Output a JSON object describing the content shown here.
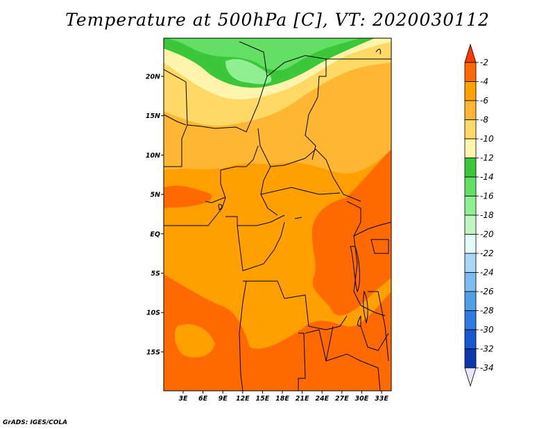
{
  "title": "Temperature at 500hPa [C], VT: 2020030112",
  "credit": "GrADS: IGES/COLA",
  "map": {
    "variable": "Temperature",
    "level": "500hPa",
    "units": "C",
    "valid_time": "2020030112",
    "lon_ticks": [
      "3E",
      "6E",
      "9E",
      "12E",
      "15E",
      "18E",
      "21E",
      "24E",
      "27E",
      "30E",
      "33E"
    ],
    "lat_ticks": [
      "20N",
      "15N",
      "10N",
      "5N",
      "EQ",
      "5S",
      "10S",
      "15S"
    ]
  },
  "colorbar": {
    "labels": [
      "-2",
      "-4",
      "-6",
      "-8",
      "-10",
      "-12",
      "-14",
      "-16",
      "-18",
      "-20",
      "-22",
      "-24",
      "-26",
      "-28",
      "-30",
      "-32",
      "-34"
    ],
    "colors": [
      "#ff3a00",
      "#ff6a00",
      "#ff9f00",
      "#ffb733",
      "#ffd966",
      "#fff5ad",
      "#3ac73a",
      "#63e063",
      "#8ef08e",
      "#bff6bf",
      "#e3fbfb",
      "#a8d8f5",
      "#7bbdf0",
      "#4f9ee8",
      "#2e7ce0",
      "#1558d0",
      "#0a36b0",
      "#061a78",
      "#ffffff",
      "#e8e8ff"
    ]
  }
}
